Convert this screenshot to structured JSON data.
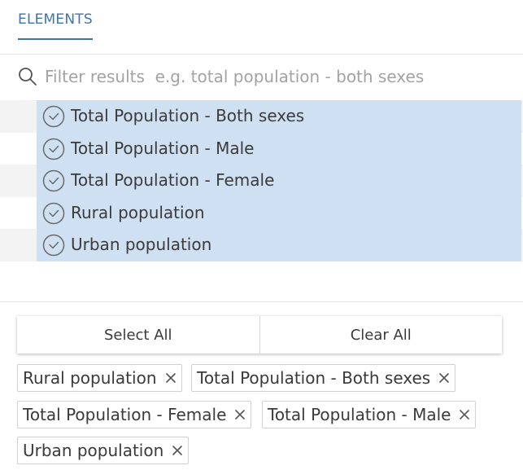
{
  "tabs": [
    {
      "label": "ELEMENTS",
      "active": true
    }
  ],
  "search": {
    "placeholder": "Filter results  e.g. total population - both sexes",
    "value": ""
  },
  "results": [
    {
      "label": "Total Population - Both sexes",
      "selected": true
    },
    {
      "label": "Total Population - Male",
      "selected": true
    },
    {
      "label": "Total Population - Female",
      "selected": true
    },
    {
      "label": "Rural population",
      "selected": true
    },
    {
      "label": "Urban population",
      "selected": true
    }
  ],
  "actions": {
    "select_all": "Select All",
    "clear_all": "Clear All"
  },
  "chips": [
    "Rural population",
    "Total Population - Both sexes",
    "Total Population - Female",
    "Total Population - Male",
    "Urban population"
  ],
  "colors": {
    "accent": "#3f74b3",
    "selection": "#cfe0f3",
    "stripe": "#f3f3f3"
  },
  "icons": {
    "search": "search-icon",
    "check": "check-circle-icon",
    "remove": "close-icon"
  }
}
